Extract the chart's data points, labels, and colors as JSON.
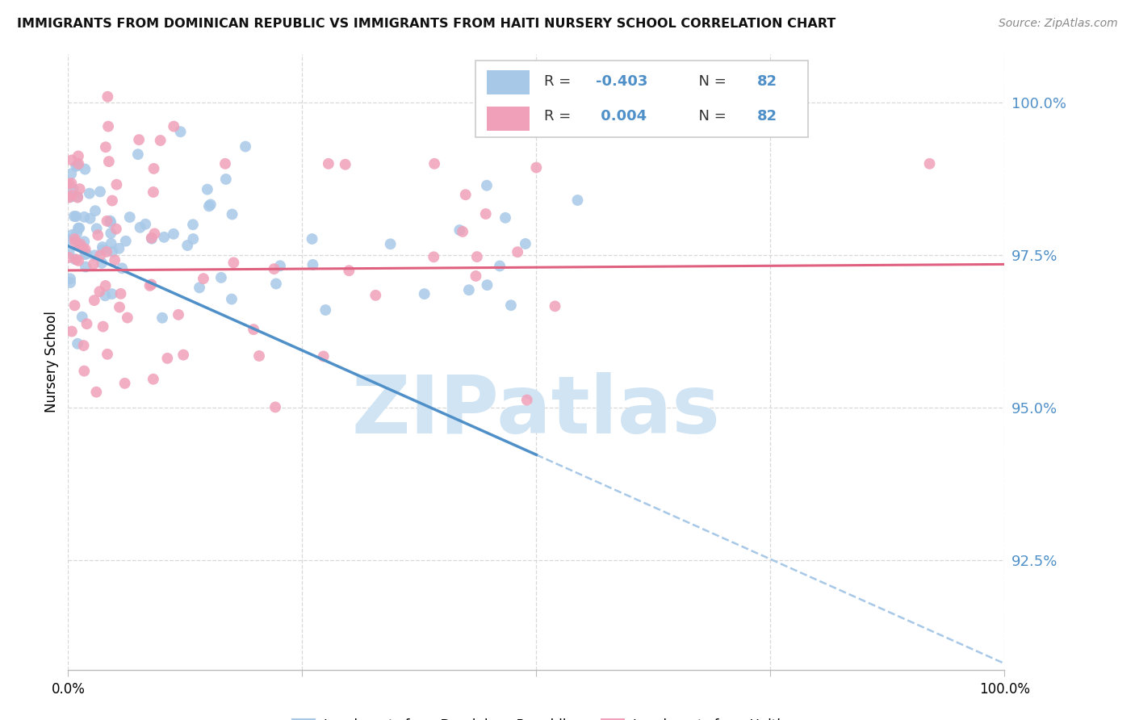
{
  "title": "IMMIGRANTS FROM DOMINICAN REPUBLIC VS IMMIGRANTS FROM HAITI NURSERY SCHOOL CORRELATION CHART",
  "source": "Source: ZipAtlas.com",
  "ylabel": "Nursery School",
  "ytick_vals": [
    1.0,
    0.975,
    0.95,
    0.925
  ],
  "ytick_labels": [
    "100.0%",
    "97.5%",
    "95.0%",
    "92.5%"
  ],
  "xlim": [
    0.0,
    1.0
  ],
  "ylim": [
    0.907,
    1.008
  ],
  "blue_color": "#a8c8e8",
  "pink_color": "#f0a0b8",
  "trend_blue_solid_color": "#5090c8",
  "trend_blue_dash_color": "#a8c8e8",
  "trend_pink_color": "#e06080",
  "watermark_text": "ZIPatlas",
  "watermark_color": "#d0e4f4",
  "grid_color": "#d8d8d8",
  "axis_color": "#5090c8",
  "title_color": "#111111",
  "source_color": "#888888",
  "blue_r": "-0.403",
  "blue_n": "82",
  "pink_r": "0.004",
  "pink_n": "82",
  "blue_legend_label": "Immigrants from Dominican Republic",
  "pink_legend_label": "Immigrants from Haiti"
}
